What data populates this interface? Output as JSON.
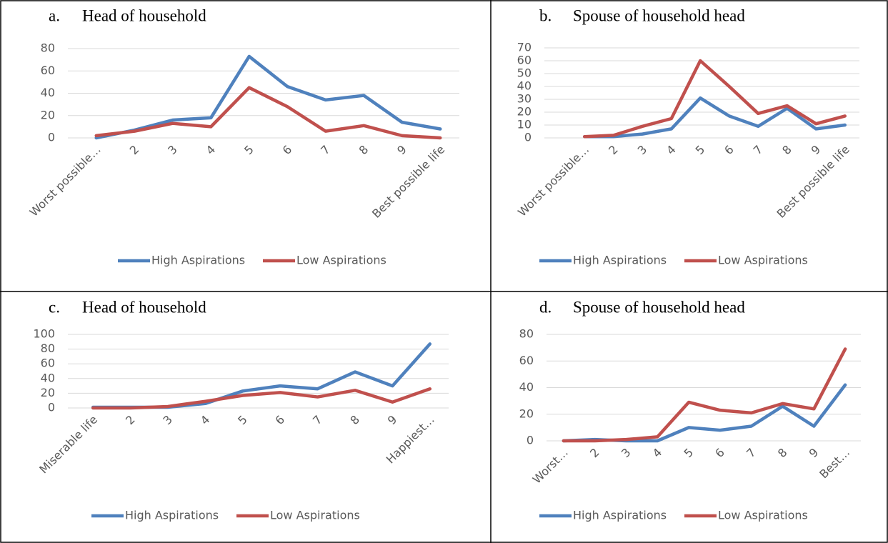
{
  "chart_data": [
    {
      "type": "line",
      "label": "a.",
      "title": "Head of household",
      "categories": [
        "Worst possible…",
        "2",
        "3",
        "4",
        "5",
        "6",
        "7",
        "8",
        "9",
        "Best possible life"
      ],
      "series": [
        {
          "name": "High Aspirations",
          "color": "#4f81bd",
          "values": [
            0,
            7,
            16,
            18,
            73,
            46,
            34,
            38,
            14,
            8
          ]
        },
        {
          "name": "Low Aspirations",
          "color": "#c0504d",
          "values": [
            2,
            6,
            13,
            10,
            45,
            28,
            6,
            11,
            2,
            0
          ]
        }
      ],
      "ylim": [
        0,
        80
      ],
      "yticks": [
        0,
        20,
        40,
        60,
        80
      ],
      "grid": true
    },
    {
      "type": "line",
      "label": "b.",
      "title": "Spouse of household head",
      "categories": [
        "Worst possible…",
        "2",
        "3",
        "4",
        "5",
        "6",
        "7",
        "8",
        "9",
        "Best possible life"
      ],
      "series": [
        {
          "name": "High Aspirations",
          "color": "#4f81bd",
          "values": [
            1,
            1,
            3,
            7,
            31,
            17,
            9,
            23,
            7,
            10
          ]
        },
        {
          "name": "Low Aspirations",
          "color": "#c0504d",
          "values": [
            1,
            2,
            9,
            15,
            60,
            40,
            19,
            25,
            11,
            17
          ]
        }
      ],
      "ylim": [
        0,
        70
      ],
      "yticks": [
        0,
        10,
        20,
        30,
        40,
        50,
        60,
        70
      ],
      "grid": true
    },
    {
      "type": "line",
      "label": "c.",
      "title": "Head of household",
      "categories": [
        "Miserable life",
        "2",
        "3",
        "4",
        "5",
        "6",
        "7",
        "8",
        "9",
        "Happiest…"
      ],
      "series": [
        {
          "name": "High Aspirations",
          "color": "#4f81bd",
          "values": [
            1,
            1,
            1,
            6,
            23,
            30,
            26,
            49,
            30,
            87
          ]
        },
        {
          "name": "Low Aspirations",
          "color": "#c0504d",
          "values": [
            0,
            0,
            2,
            9,
            17,
            21,
            15,
            24,
            8,
            26
          ]
        }
      ],
      "ylim": [
        0,
        100
      ],
      "yticks": [
        0,
        20,
        40,
        60,
        80,
        100
      ],
      "grid": true
    },
    {
      "type": "line",
      "label": "d.",
      "title": "Spouse of household head",
      "categories": [
        "Worst…",
        "2",
        "3",
        "4",
        "5",
        "6",
        "7",
        "8",
        "9",
        "Best…"
      ],
      "series": [
        {
          "name": "High Aspirations",
          "color": "#4f81bd",
          "values": [
            0,
            1,
            0,
            0,
            10,
            8,
            11,
            26,
            11,
            42
          ]
        },
        {
          "name": "Low Aspirations",
          "color": "#c0504d",
          "values": [
            0,
            0,
            1,
            3,
            29,
            23,
            21,
            28,
            24,
            69
          ]
        }
      ],
      "ylim": [
        0,
        80
      ],
      "yticks": [
        0,
        20,
        40,
        60,
        80
      ],
      "grid": true
    }
  ]
}
